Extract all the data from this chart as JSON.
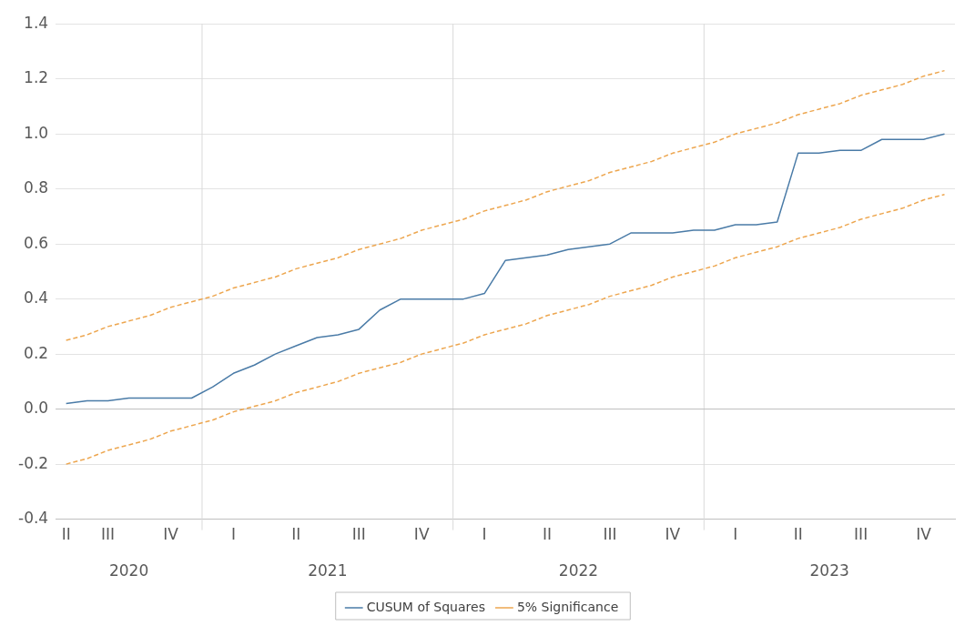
{
  "chart_data": {
    "type": "line",
    "categories": [
      "II",
      null,
      "III",
      null,
      null,
      "IV",
      null,
      null,
      "I",
      null,
      null,
      "II",
      null,
      null,
      "III",
      null,
      null,
      "IV",
      null,
      null,
      "I",
      null,
      null,
      "II",
      null,
      null,
      "III",
      null,
      null,
      "IV",
      null,
      null,
      "I",
      null,
      null,
      "II",
      null,
      null,
      "III",
      null,
      null,
      "IV",
      null
    ],
    "series": [
      {
        "name": "CUSUM of Squares",
        "color": "#4a7ba7",
        "line_style": "solid",
        "values": [
          0.02,
          0.03,
          0.03,
          0.04,
          0.04,
          0.04,
          0.04,
          0.08,
          0.13,
          0.16,
          0.2,
          0.23,
          0.26,
          0.27,
          0.29,
          0.36,
          0.4,
          0.4,
          0.4,
          0.4,
          0.42,
          0.54,
          0.55,
          0.56,
          0.58,
          0.59,
          0.6,
          0.64,
          0.64,
          0.64,
          0.65,
          0.65,
          0.67,
          0.67,
          0.68,
          0.93,
          0.93,
          0.94,
          0.94,
          0.98,
          0.98,
          0.98,
          1.0
        ]
      },
      {
        "name": "5% Significance",
        "color": "#eda64f",
        "line_style": "dashed",
        "values": [
          0.25,
          0.27,
          0.3,
          0.32,
          0.34,
          0.37,
          0.39,
          0.41,
          0.44,
          0.46,
          0.48,
          0.51,
          0.53,
          0.55,
          0.58,
          0.6,
          0.62,
          0.65,
          0.67,
          0.69,
          0.72,
          0.74,
          0.76,
          0.79,
          0.81,
          0.83,
          0.86,
          0.88,
          0.9,
          0.93,
          0.95,
          0.97,
          1.0,
          1.02,
          1.04,
          1.07,
          1.09,
          1.11,
          1.14,
          1.16,
          1.18,
          1.21,
          1.23
        ]
      },
      {
        "color": "#eda64f",
        "line_style": "dashed",
        "values": [
          -0.2,
          -0.18,
          -0.15,
          -0.13,
          -0.11,
          -0.08,
          -0.06,
          -0.04,
          -0.01,
          0.01,
          0.03,
          0.06,
          0.08,
          0.1,
          0.13,
          0.15,
          0.17,
          0.2,
          0.22,
          0.24,
          0.27,
          0.29,
          0.31,
          0.34,
          0.36,
          0.38,
          0.41,
          0.43,
          0.45,
          0.48,
          0.5,
          0.52,
          0.55,
          0.57,
          0.59,
          0.62,
          0.64,
          0.66,
          0.69,
          0.71,
          0.73,
          0.76,
          0.78
        ]
      }
    ],
    "ylim": [
      -0.4,
      1.4
    ],
    "yticks": [
      -0.4,
      -0.2,
      {
        "value": 0,
        "label": "0.0"
      },
      0.2,
      0.4,
      0.6,
      0.8,
      {
        "value": 1,
        "label": "1.0"
      },
      1.2,
      1.4
    ],
    "annotations": [
      "2020",
      "2021",
      "2022",
      "2023"
    ],
    "grid": "y",
    "legend": "bottom",
    "marker": "none"
  }
}
